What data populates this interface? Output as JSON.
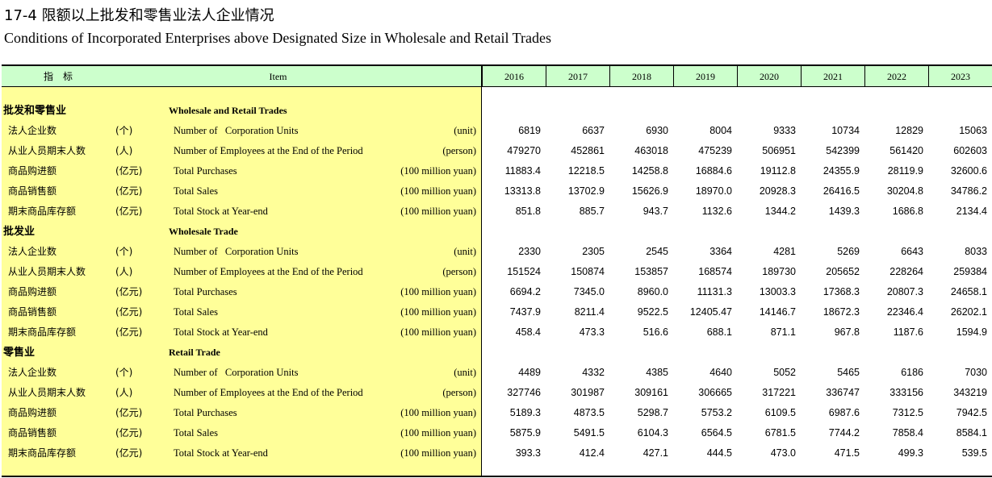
{
  "title_cn": "17-4  限额以上批发和零售业法人企业情况",
  "title_en": "Conditions of Incorporated Enterprises above Designated Size in Wholesale and Retail Trades",
  "header": {
    "indicator_cn": "指　标",
    "item_en": "Item",
    "years": [
      "2016",
      "2017",
      "2018",
      "2019",
      "2020",
      "2021",
      "2022",
      "2023"
    ]
  },
  "sections": [
    {
      "cn": "批发和零售业",
      "en": "Wholesale and Retail Trades",
      "rows": [
        {
          "cn": "法人企业数",
          "cunit": "(个)",
          "en": "Number of   Corporation Units",
          "eunit": "(unit)",
          "values": [
            "6819",
            "6637",
            "6930",
            "8004",
            "9333",
            "10734",
            "12829",
            "15063"
          ]
        },
        {
          "cn": "从业人员期末人数",
          "cunit": "(人)",
          "en": "Number of Employees at the End of the Period",
          "eunit": "(person)",
          "values": [
            "479270",
            "452861",
            "463018",
            "475239",
            "506951",
            "542399",
            "561420",
            "602603"
          ]
        },
        {
          "cn": "商品购进额",
          "cunit": "(亿元)",
          "en": "Total Purchases",
          "eunit": "(100 million yuan)",
          "values": [
            "11883.4",
            "12218.5",
            "14258.8",
            "16884.6",
            "19112.8",
            "24355.9",
            "28119.9",
            "32600.6"
          ]
        },
        {
          "cn": "商品销售额",
          "cunit": "(亿元)",
          "en": "Total Sales",
          "eunit": "(100 million yuan)",
          "values": [
            "13313.8",
            "13702.9",
            "15626.9",
            "18970.0",
            "20928.3",
            "26416.5",
            "30204.8",
            "34786.2"
          ]
        },
        {
          "cn": "期末商品库存额",
          "cunit": "(亿元)",
          "en": "Total Stock at Year-end",
          "eunit": "(100 million yuan)",
          "values": [
            "851.8",
            "885.7",
            "943.7",
            "1132.6",
            "1344.2",
            "1439.3",
            "1686.8",
            "2134.4"
          ]
        }
      ]
    },
    {
      "cn": "批发业",
      "en": "Wholesale Trade",
      "rows": [
        {
          "cn": "法人企业数",
          "cunit": "(个)",
          "en": "Number of   Corporation Units",
          "eunit": "(unit)",
          "values": [
            "2330",
            "2305",
            "2545",
            "3364",
            "4281",
            "5269",
            "6643",
            "8033"
          ]
        },
        {
          "cn": "从业人员期末人数",
          "cunit": "(人)",
          "en": "Number of Employees at the End of the Period",
          "eunit": "(person)",
          "values": [
            "151524",
            "150874",
            "153857",
            "168574",
            "189730",
            "205652",
            "228264",
            "259384"
          ]
        },
        {
          "cn": "商品购进额",
          "cunit": "(亿元)",
          "en": "Total Purchases",
          "eunit": "(100 million yuan)",
          "values": [
            "6694.2",
            "7345.0",
            "8960.0",
            "11131.3",
            "13003.3",
            "17368.3",
            "20807.3",
            "24658.1"
          ]
        },
        {
          "cn": "商品销售额",
          "cunit": "(亿元)",
          "en": "Total Sales",
          "eunit": "(100 million yuan)",
          "values": [
            "7437.9",
            "8211.4",
            "9522.5",
            "12405.47",
            "14146.7",
            "18672.3",
            "22346.4",
            "26202.1"
          ]
        },
        {
          "cn": "期末商品库存额",
          "cunit": "(亿元)",
          "en": "Total Stock at Year-end",
          "eunit": "(100 million yuan)",
          "values": [
            "458.4",
            "473.3",
            "516.6",
            "688.1",
            "871.1",
            "967.8",
            "1187.6",
            "1594.9"
          ]
        }
      ]
    },
    {
      "cn": "零售业",
      "en": "Retail Trade",
      "rows": [
        {
          "cn": "法人企业数",
          "cunit": "(个)",
          "en": "Number of   Corporation Units",
          "eunit": "(unit)",
          "values": [
            "4489",
            "4332",
            "4385",
            "4640",
            "5052",
            "5465",
            "6186",
            "7030"
          ]
        },
        {
          "cn": "从业人员期末人数",
          "cunit": "(人)",
          "en": "Number of Employees at the End of the Period",
          "eunit": "(person)",
          "values": [
            "327746",
            "301987",
            "309161",
            "306665",
            "317221",
            "336747",
            "333156",
            "343219"
          ]
        },
        {
          "cn": "商品购进额",
          "cunit": "(亿元)",
          "en": "Total Purchases",
          "eunit": "(100 million yuan)",
          "values": [
            "5189.3",
            "4873.5",
            "5298.7",
            "5753.2",
            "6109.5",
            "6987.6",
            "7312.5",
            "7942.5"
          ]
        },
        {
          "cn": "商品销售额",
          "cunit": "(亿元)",
          "en": "Total Sales",
          "eunit": "(100 million yuan)",
          "values": [
            "5875.9",
            "5491.5",
            "6104.3",
            "6564.5",
            "6781.5",
            "7744.2",
            "7858.4",
            "8584.1"
          ]
        },
        {
          "cn": "期末商品库存额",
          "cunit": "(亿元)",
          "en": "Total Stock at Year-end",
          "eunit": "(100 million yuan)",
          "values": [
            "393.3",
            "412.4",
            "427.1",
            "444.5",
            "473.0",
            "471.5",
            "499.3",
            "539.5"
          ]
        }
      ]
    }
  ]
}
